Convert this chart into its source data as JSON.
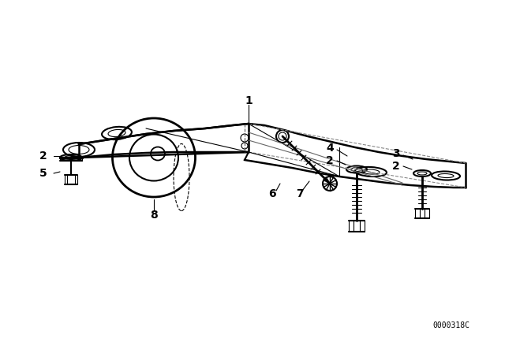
{
  "background_color": "#ffffff",
  "line_color": "#000000",
  "catalog_number": "0000318C",
  "lw_main": 1.5,
  "lw_thin": 0.8,
  "label_fontsize": 10
}
